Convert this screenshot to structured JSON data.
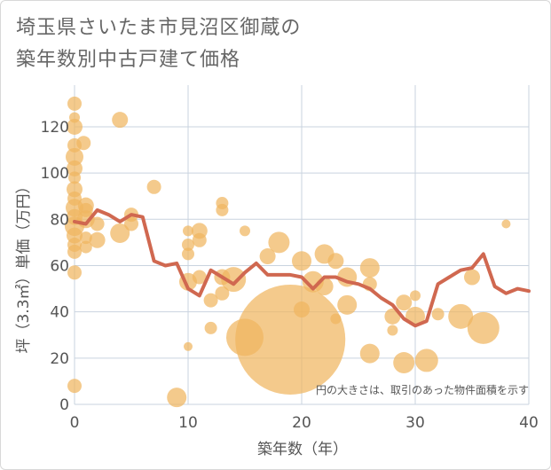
{
  "title_lines": [
    "埼玉県さいたま市見沼区御蔵の",
    "築年数別中古戸建て価格"
  ],
  "chart_data": {
    "type": "scatter",
    "xlabel": "築年数（年）",
    "ylabel": "坪（3.3㎡）単価（万円）",
    "xlim": [
      0,
      40
    ],
    "ylim": [
      0,
      138
    ],
    "x_ticks": [
      0,
      10,
      20,
      30,
      40
    ],
    "y_ticks": [
      0,
      20,
      40,
      60,
      80,
      100,
      120
    ],
    "grid": true,
    "annotation": "円の大きさは、取引のあった物件面積を示す",
    "colors": {
      "bubble": "#f0b660",
      "line": "#d06850",
      "grid": "#c9d3df",
      "text": "#555555"
    },
    "bubbles": [
      {
        "x": 0,
        "y": 130,
        "size": 8
      },
      {
        "x": 0,
        "y": 124,
        "size": 6
      },
      {
        "x": 0,
        "y": 120,
        "size": 9
      },
      {
        "x": 0,
        "y": 112,
        "size": 8
      },
      {
        "x": 0,
        "y": 107,
        "size": 10
      },
      {
        "x": 0,
        "y": 102,
        "size": 9
      },
      {
        "x": 0,
        "y": 98,
        "size": 7
      },
      {
        "x": 0,
        "y": 93,
        "size": 9
      },
      {
        "x": 0,
        "y": 89,
        "size": 8
      },
      {
        "x": 0,
        "y": 85,
        "size": 10
      },
      {
        "x": 0,
        "y": 81,
        "size": 9
      },
      {
        "x": 0,
        "y": 77,
        "size": 11
      },
      {
        "x": 0,
        "y": 73,
        "size": 9
      },
      {
        "x": 0,
        "y": 69,
        "size": 8
      },
      {
        "x": 0,
        "y": 66,
        "size": 8
      },
      {
        "x": 0,
        "y": 57,
        "size": 8
      },
      {
        "x": 0,
        "y": 8,
        "size": 8
      },
      {
        "x": 0.8,
        "y": 113,
        "size": 8
      },
      {
        "x": 1,
        "y": 86,
        "size": 9
      },
      {
        "x": 1,
        "y": 84,
        "size": 8
      },
      {
        "x": 1,
        "y": 80,
        "size": 10
      },
      {
        "x": 1,
        "y": 72,
        "size": 7
      },
      {
        "x": 1,
        "y": 68,
        "size": 7
      },
      {
        "x": 2,
        "y": 78,
        "size": 8
      },
      {
        "x": 2,
        "y": 71,
        "size": 9
      },
      {
        "x": 4,
        "y": 123,
        "size": 9
      },
      {
        "x": 4,
        "y": 74,
        "size": 11
      },
      {
        "x": 5,
        "y": 82,
        "size": 8
      },
      {
        "x": 5,
        "y": 78,
        "size": 8
      },
      {
        "x": 7,
        "y": 94,
        "size": 8
      },
      {
        "x": 9,
        "y": 3,
        "size": 11
      },
      {
        "x": 10,
        "y": 75,
        "size": 6
      },
      {
        "x": 10,
        "y": 69,
        "size": 7
      },
      {
        "x": 10,
        "y": 65,
        "size": 7
      },
      {
        "x": 10,
        "y": 53,
        "size": 10
      },
      {
        "x": 10,
        "y": 25,
        "size": 5
      },
      {
        "x": 11,
        "y": 75,
        "size": 9
      },
      {
        "x": 11,
        "y": 71,
        "size": 8
      },
      {
        "x": 11,
        "y": 55,
        "size": 8
      },
      {
        "x": 12,
        "y": 45,
        "size": 8
      },
      {
        "x": 12,
        "y": 33,
        "size": 7
      },
      {
        "x": 13,
        "y": 87,
        "size": 7
      },
      {
        "x": 13,
        "y": 84,
        "size": 7
      },
      {
        "x": 13,
        "y": 55,
        "size": 9
      },
      {
        "x": 13,
        "y": 48,
        "size": 8
      },
      {
        "x": 14,
        "y": 54,
        "size": 14
      },
      {
        "x": 15,
        "y": 75,
        "size": 6
      },
      {
        "x": 15,
        "y": 29,
        "size": 21
      },
      {
        "x": 17,
        "y": 64,
        "size": 9
      },
      {
        "x": 18,
        "y": 70,
        "size": 12
      },
      {
        "x": 19,
        "y": 28,
        "size": 62
      },
      {
        "x": 20,
        "y": 62,
        "size": 11
      },
      {
        "x": 20,
        "y": 41,
        "size": 9
      },
      {
        "x": 21,
        "y": 53,
        "size": 12
      },
      {
        "x": 22,
        "y": 65,
        "size": 11
      },
      {
        "x": 22,
        "y": 51,
        "size": 10
      },
      {
        "x": 23,
        "y": 62,
        "size": 9
      },
      {
        "x": 23,
        "y": 37,
        "size": 6
      },
      {
        "x": 24,
        "y": 55,
        "size": 11
      },
      {
        "x": 24,
        "y": 43,
        "size": 11
      },
      {
        "x": 26,
        "y": 59,
        "size": 11
      },
      {
        "x": 26,
        "y": 52,
        "size": 8
      },
      {
        "x": 26,
        "y": 22,
        "size": 11
      },
      {
        "x": 28,
        "y": 38,
        "size": 9
      },
      {
        "x": 28,
        "y": 32,
        "size": 6
      },
      {
        "x": 29,
        "y": 44,
        "size": 9
      },
      {
        "x": 29,
        "y": 18,
        "size": 12
      },
      {
        "x": 30,
        "y": 47,
        "size": 6
      },
      {
        "x": 30,
        "y": 38,
        "size": 11
      },
      {
        "x": 31,
        "y": 19,
        "size": 13
      },
      {
        "x": 32,
        "y": 39,
        "size": 7
      },
      {
        "x": 34,
        "y": 38,
        "size": 14
      },
      {
        "x": 35,
        "y": 55,
        "size": 9
      },
      {
        "x": 36,
        "y": 33,
        "size": 18
      },
      {
        "x": 38,
        "y": 78,
        "size": 5
      }
    ],
    "line": {
      "x": [
        0,
        1,
        2,
        3,
        4,
        5,
        6,
        7,
        8,
        9,
        10,
        11,
        12,
        13,
        14,
        15,
        16,
        17,
        18,
        19,
        20,
        21,
        22,
        23,
        24,
        25,
        26,
        27,
        28,
        29,
        30,
        31,
        32,
        33,
        34,
        35,
        36,
        37,
        38,
        39,
        40
      ],
      "y": [
        79,
        78,
        84,
        82,
        79,
        82,
        81,
        62,
        60,
        61,
        50,
        47,
        58,
        55,
        52,
        57,
        61,
        56,
        56,
        56,
        55,
        50,
        55,
        55,
        53,
        52,
        50,
        46,
        43,
        37,
        34,
        36,
        52,
        55,
        58,
        59,
        65,
        51,
        48,
        50,
        49
      ]
    }
  }
}
